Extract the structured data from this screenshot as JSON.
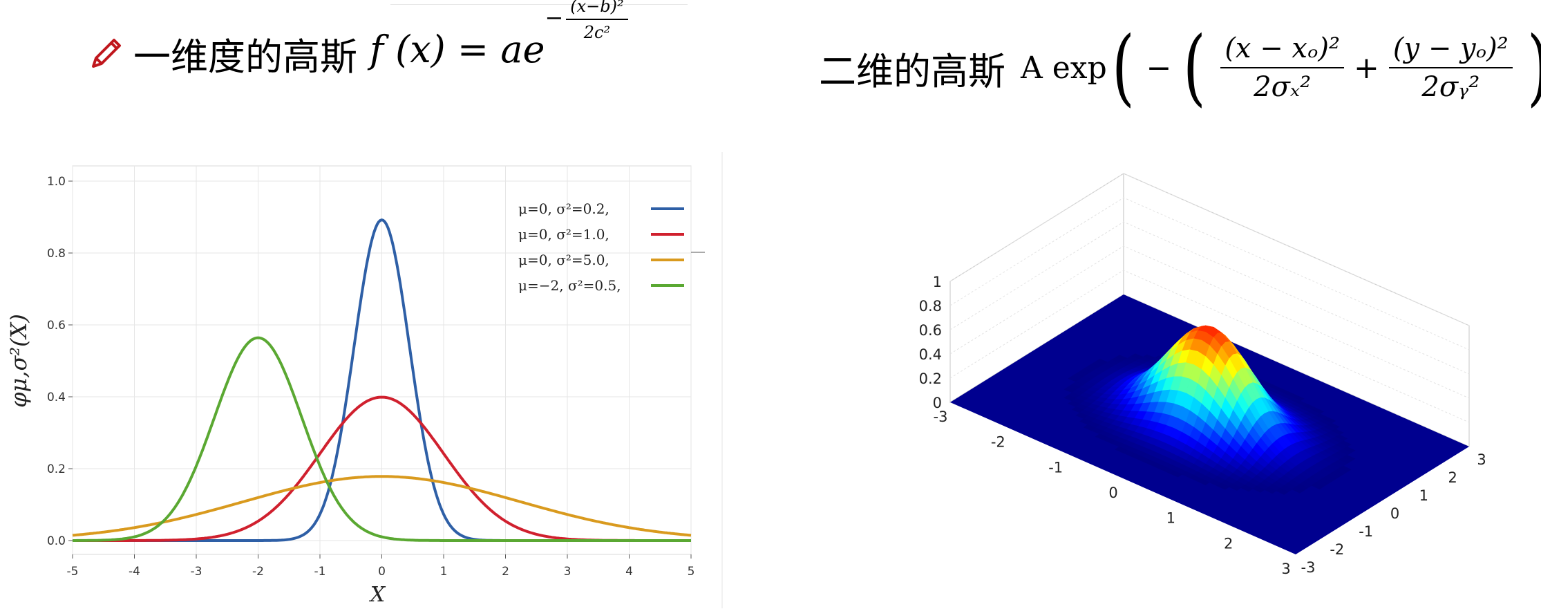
{
  "header_1d": {
    "icon": "pencil-icon",
    "title": "一维度的高斯",
    "formula_lhs": "f (x) = ae",
    "exponent_sign": "−",
    "exponent_num": "(x−b)²",
    "exponent_den": "2c²"
  },
  "header_2d": {
    "title": "二维的高斯",
    "formula_prefix": "A exp",
    "minus": "−",
    "term1_num": "(x − xₒ)²",
    "term1_den": "2σₓ²",
    "plus": "+",
    "term2_num": "(y − yₒ)²",
    "term2_den": "2σᵧ²"
  },
  "chart_data": [
    {
      "type": "line",
      "xlabel": "X",
      "ylabel": "φμ,σ²(X)",
      "xlim": [
        -5,
        5
      ],
      "ylim": [
        0,
        1.0
      ],
      "xticks": [
        "-5",
        "-4",
        "-3",
        "-2",
        "-1",
        "0",
        "1",
        "2",
        "3",
        "4",
        "5"
      ],
      "yticks": [
        "0.0",
        "0.2",
        "0.4",
        "0.6",
        "0.8",
        "1.0"
      ],
      "grid": true,
      "legend_position": "top-right",
      "series": [
        {
          "name": "μ=0,   σ²=0.2,",
          "mu": 0,
          "var": 0.2,
          "color": "#2e5fa6"
        },
        {
          "name": "μ=0,   σ²=1.0,",
          "mu": 0,
          "var": 1.0,
          "color": "#d0202e"
        },
        {
          "name": "μ=0,   σ²=5.0,",
          "mu": 0,
          "var": 5.0,
          "color": "#d99a1e"
        },
        {
          "name": "μ=−2, σ²=0.5,",
          "mu": -2,
          "var": 0.5,
          "color": "#5aa832"
        }
      ]
    },
    {
      "type": "surface",
      "zticks": [
        "0",
        "0.2",
        "0.4",
        "0.6",
        "0.8",
        "1"
      ],
      "xticks": [
        "-3",
        "-2",
        "-1",
        "0",
        "1",
        "2",
        "3"
      ],
      "yticks": [
        "-3",
        "-2",
        "-1",
        "0",
        "1",
        "2",
        "3"
      ],
      "xlim": [
        -3,
        3
      ],
      "ylim": [
        -3,
        3
      ],
      "zlim": [
        0,
        1
      ],
      "peak": 0.8,
      "colormap": "jet"
    }
  ]
}
